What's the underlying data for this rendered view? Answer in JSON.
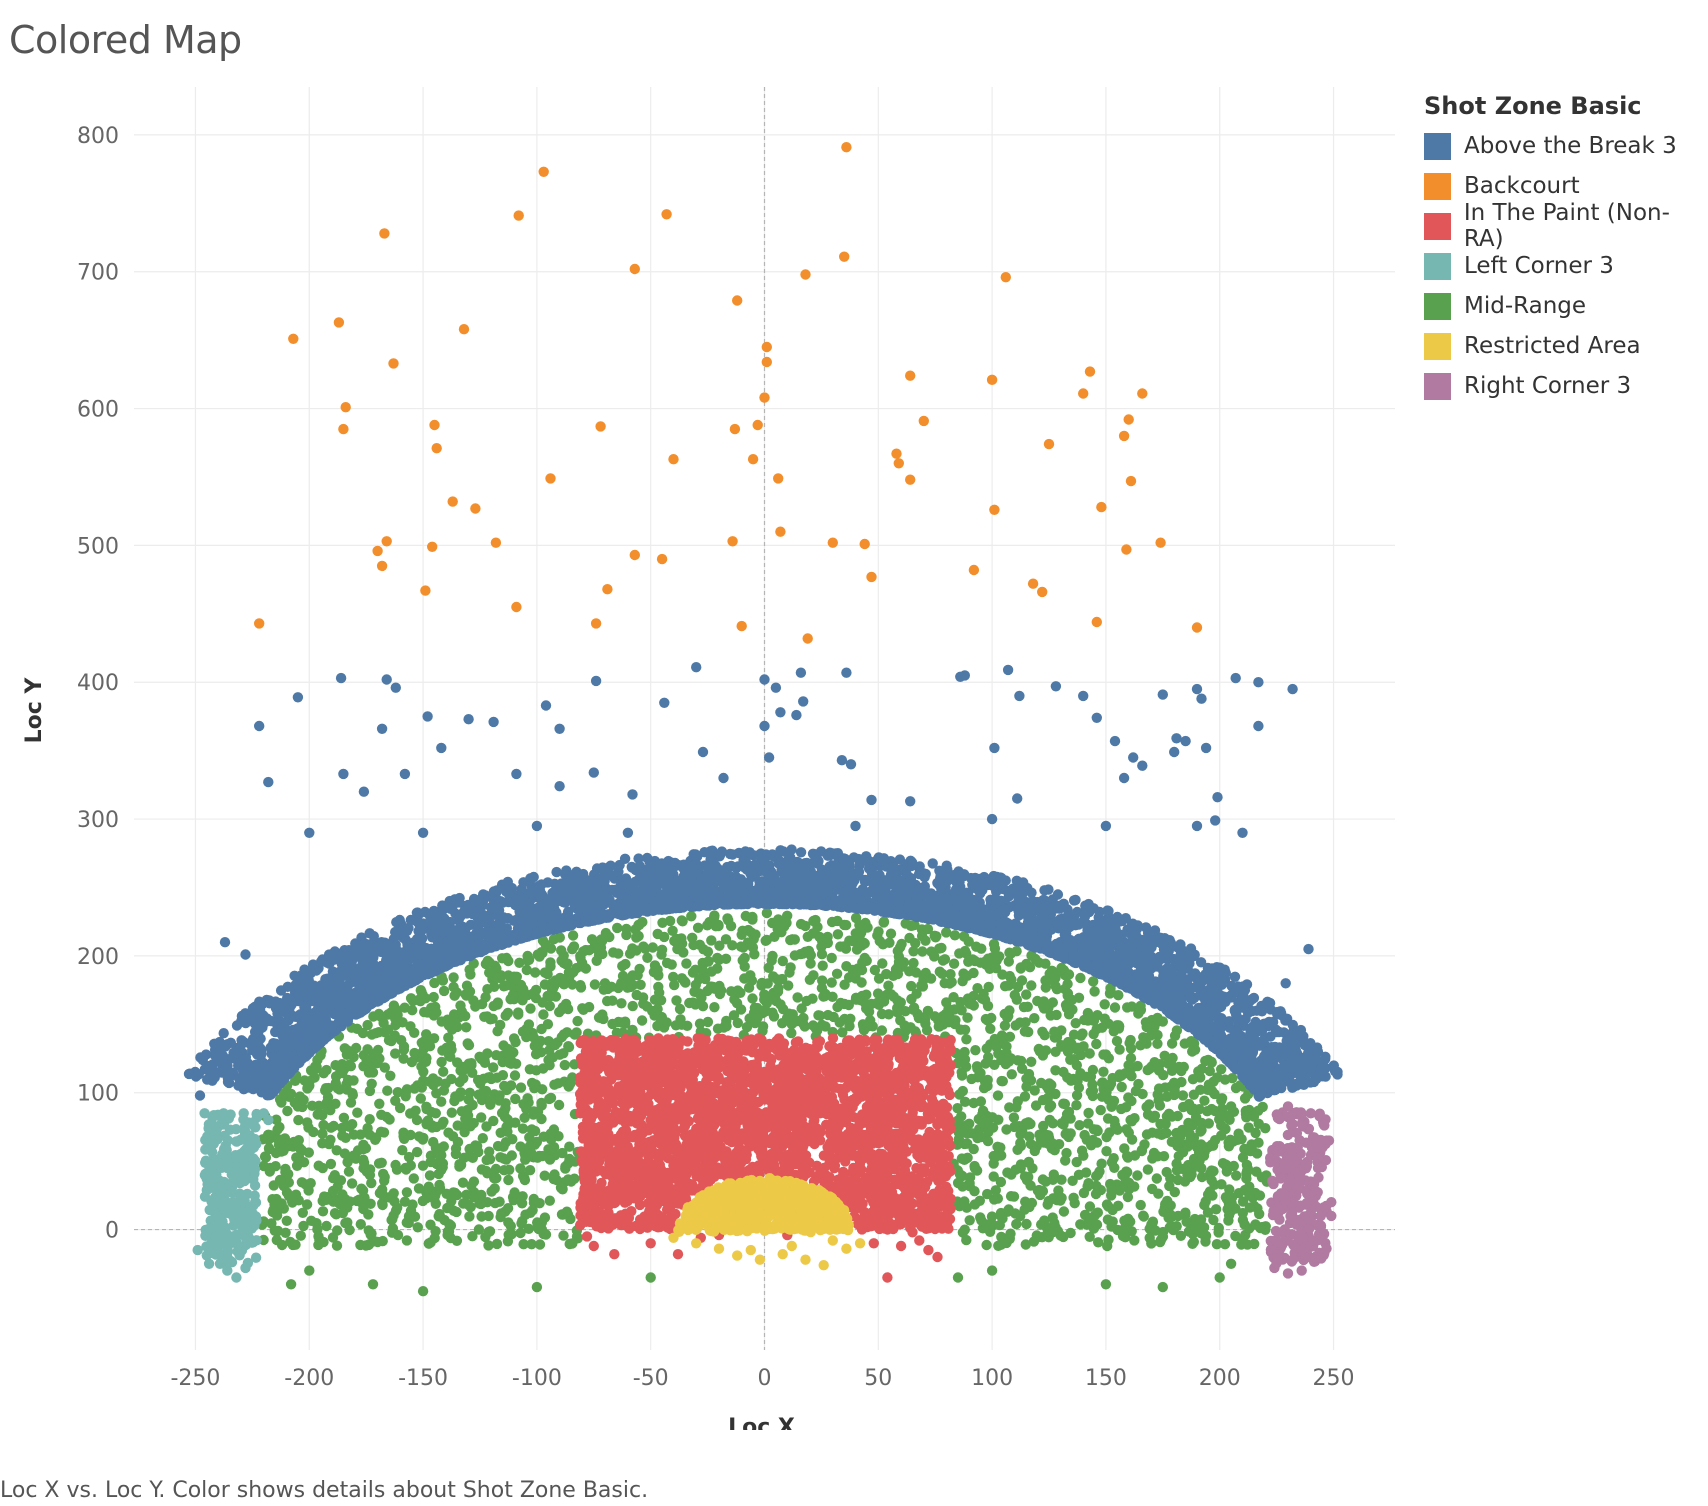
{
  "title": "Colored Map",
  "caption": "Loc X vs. Loc Y.  Color shows details about Shot Zone Basic.",
  "chart_data": {
    "type": "scatter",
    "xlabel": "Loc X",
    "ylabel": "Loc Y",
    "xlim": [
      -277,
      277
    ],
    "ylim": [
      -88,
      835
    ],
    "x_ticks": [
      -250,
      -200,
      -150,
      -100,
      -50,
      0,
      50,
      100,
      150,
      200,
      250
    ],
    "y_ticks": [
      0,
      100,
      200,
      300,
      400,
      500,
      600,
      700,
      800
    ],
    "grid": true,
    "reference_lines": {
      "x": 0,
      "y": 0
    },
    "legend_title": "Shot Zone Basic",
    "legend_position": "right",
    "series": [
      {
        "name": "Above the Break 3",
        "color": "#4E79A7",
        "points": [
          [
            -222,
            368
          ],
          [
            -218,
            327
          ],
          [
            -205,
            389
          ],
          [
            -186,
            403
          ],
          [
            -185,
            333
          ],
          [
            -176,
            320
          ],
          [
            -166,
            402
          ],
          [
            -162,
            396
          ],
          [
            -168,
            366
          ],
          [
            -158,
            333
          ],
          [
            -148,
            375
          ],
          [
            -142,
            352
          ],
          [
            -130,
            373
          ],
          [
            -119,
            371
          ],
          [
            -109,
            333
          ],
          [
            -96,
            383
          ],
          [
            -90,
            366
          ],
          [
            -90,
            324
          ],
          [
            -75,
            334
          ],
          [
            -74,
            401
          ],
          [
            -58,
            318
          ],
          [
            -44,
            385
          ],
          [
            -30,
            411
          ],
          [
            -27,
            349
          ],
          [
            -18,
            330
          ],
          [
            0,
            402
          ],
          [
            5,
            396
          ],
          [
            16,
            407
          ],
          [
            17,
            386
          ],
          [
            14,
            376
          ],
          [
            7,
            378
          ],
          [
            0,
            368
          ],
          [
            2,
            345
          ],
          [
            34,
            343
          ],
          [
            38,
            340
          ],
          [
            47,
            314
          ],
          [
            64,
            313
          ],
          [
            36,
            407
          ],
          [
            88,
            405
          ],
          [
            86,
            404
          ],
          [
            101,
            352
          ],
          [
            107,
            409
          ],
          [
            112,
            390
          ],
          [
            111,
            315
          ],
          [
            128,
            397
          ],
          [
            140,
            390
          ],
          [
            146,
            374
          ],
          [
            154,
            357
          ],
          [
            158,
            330
          ],
          [
            162,
            345
          ],
          [
            166,
            339
          ],
          [
            175,
            391
          ],
          [
            181,
            359
          ],
          [
            180,
            349
          ],
          [
            185,
            357
          ],
          [
            190,
            395
          ],
          [
            192,
            388
          ],
          [
            194,
            352
          ],
          [
            199,
            316
          ],
          [
            198,
            299
          ],
          [
            207,
            403
          ],
          [
            217,
            400
          ],
          [
            217,
            368
          ],
          [
            232,
            395
          ],
          [
            239,
            205
          ],
          [
            -228,
            201
          ],
          [
            -237,
            210
          ],
          [
            -225,
            157
          ],
          [
            -240,
            130
          ],
          [
            -248,
            98
          ],
          [
            -200,
            290
          ],
          [
            -150,
            290
          ],
          [
            -100,
            295
          ],
          [
            -60,
            290
          ],
          [
            40,
            295
          ],
          [
            100,
            300
          ],
          [
            150,
            295
          ],
          [
            190,
            295
          ],
          [
            210,
            290
          ],
          [
            229,
            180
          ],
          [
            245,
            112
          ]
        ]
      },
      {
        "name": "Backcourt",
        "color": "#F28E2B",
        "points": [
          [
            -222,
            443
          ],
          [
            -207,
            651
          ],
          [
            -187,
            663
          ],
          [
            -185,
            585
          ],
          [
            -184,
            601
          ],
          [
            -167,
            728
          ],
          [
            -166,
            503
          ],
          [
            -163,
            633
          ],
          [
            -168,
            485
          ],
          [
            -170,
            496
          ],
          [
            -149,
            467
          ],
          [
            -145,
            588
          ],
          [
            -146,
            499
          ],
          [
            -144,
            571
          ],
          [
            -137,
            532
          ],
          [
            -132,
            658
          ],
          [
            -127,
            527
          ],
          [
            -118,
            502
          ],
          [
            -108,
            741
          ],
          [
            -109,
            455
          ],
          [
            -97,
            773
          ],
          [
            -94,
            549
          ],
          [
            -72,
            587
          ],
          [
            -74,
            443
          ],
          [
            -69,
            468
          ],
          [
            -57,
            702
          ],
          [
            -57,
            493
          ],
          [
            -45,
            490
          ],
          [
            -43,
            742
          ],
          [
            -40,
            563
          ],
          [
            -14,
            503
          ],
          [
            -13,
            585
          ],
          [
            -12,
            679
          ],
          [
            -10,
            441
          ],
          [
            -5,
            563
          ],
          [
            -3,
            588
          ],
          [
            0,
            608
          ],
          [
            1,
            645
          ],
          [
            1,
            634
          ],
          [
            6,
            549
          ],
          [
            7,
            510
          ],
          [
            18,
            698
          ],
          [
            19,
            432
          ],
          [
            35,
            711
          ],
          [
            36,
            791
          ],
          [
            30,
            502
          ],
          [
            44,
            501
          ],
          [
            47,
            477
          ],
          [
            58,
            567
          ],
          [
            59,
            560
          ],
          [
            64,
            624
          ],
          [
            64,
            548
          ],
          [
            70,
            591
          ],
          [
            92,
            482
          ],
          [
            100,
            621
          ],
          [
            101,
            526
          ],
          [
            106,
            696
          ],
          [
            118,
            472
          ],
          [
            122,
            466
          ],
          [
            125,
            574
          ],
          [
            140,
            611
          ],
          [
            143,
            627
          ],
          [
            146,
            444
          ],
          [
            148,
            528
          ],
          [
            158,
            580
          ],
          [
            159,
            497
          ],
          [
            160,
            592
          ],
          [
            161,
            547
          ],
          [
            166,
            611
          ],
          [
            174,
            502
          ],
          [
            190,
            440
          ]
        ]
      },
      {
        "name": "In The Paint (Non-RA)",
        "color": "#E15759",
        "region": {
          "shape": "rect",
          "x": [
            -81,
            82
          ],
          "y": [
            0,
            140
          ]
        },
        "points": [
          [
            -75,
            -12
          ],
          [
            -66,
            -18
          ],
          [
            -50,
            -10
          ],
          [
            -38,
            -18
          ],
          [
            -28,
            -6
          ],
          [
            -20,
            -4
          ],
          [
            10,
            -4
          ],
          [
            48,
            -10
          ],
          [
            54,
            -35
          ],
          [
            60,
            -12
          ],
          [
            68,
            -8
          ],
          [
            72,
            -15
          ],
          [
            76,
            -20
          ],
          [
            65,
            -2
          ],
          [
            -78,
            -5
          ]
        ]
      },
      {
        "name": "Left Corner 3",
        "color": "#76B7B2",
        "region": {
          "shape": "rect",
          "x": [
            -249,
            -219
          ],
          "y": [
            -25,
            86
          ]
        },
        "points": [
          [
            -249,
            -15
          ],
          [
            -244,
            -25
          ],
          [
            -236,
            -30
          ],
          [
            -232,
            -35
          ],
          [
            -228,
            -28
          ],
          [
            -245,
            37
          ],
          [
            -241,
            -5
          ],
          [
            -220,
            85
          ],
          [
            -218,
            80
          ],
          [
            -246,
            85
          ]
        ]
      },
      {
        "name": "Mid-Range",
        "color": "#59A14F",
        "region": {
          "shape": "band",
          "inner_top": 140,
          "outer_top": 238,
          "x": [
            -220,
            220
          ],
          "y": [
            -10,
            238
          ]
        },
        "points": [
          [
            -208,
            -40
          ],
          [
            -200,
            -30
          ],
          [
            -150,
            -45
          ],
          [
            -100,
            -42
          ],
          [
            -50,
            -35
          ],
          [
            85,
            -35
          ],
          [
            100,
            -30
          ],
          [
            150,
            -40
          ],
          [
            200,
            -35
          ],
          [
            205,
            -25
          ],
          [
            -205,
            90
          ],
          [
            205,
            90
          ],
          [
            -172,
            -40
          ],
          [
            175,
            -42
          ]
        ]
      },
      {
        "name": "Restricted Area",
        "color": "#EDC948",
        "region": {
          "shape": "semicircle",
          "center": [
            0,
            0
          ],
          "radius": 40
        },
        "points": [
          [
            -40,
            -6
          ],
          [
            -30,
            -10
          ],
          [
            -20,
            -14
          ],
          [
            -12,
            -19
          ],
          [
            -2,
            -22
          ],
          [
            8,
            -18
          ],
          [
            18,
            -22
          ],
          [
            26,
            -26
          ],
          [
            36,
            -14
          ],
          [
            30,
            -8
          ],
          [
            42,
            -10
          ],
          [
            12,
            -12
          ],
          [
            -6,
            -15
          ]
        ]
      },
      {
        "name": "Right Corner 3",
        "color": "#B07AA1",
        "region": {
          "shape": "rect",
          "x": [
            222,
            249
          ],
          "y": [
            -25,
            90
          ]
        },
        "points": [
          [
            224,
            -28
          ],
          [
            230,
            -32
          ],
          [
            236,
            -30
          ],
          [
            242,
            -20
          ],
          [
            249,
            10
          ],
          [
            249,
            20
          ],
          [
            248,
            65
          ],
          [
            240,
            85
          ],
          [
            230,
            90
          ]
        ]
      }
    ]
  }
}
